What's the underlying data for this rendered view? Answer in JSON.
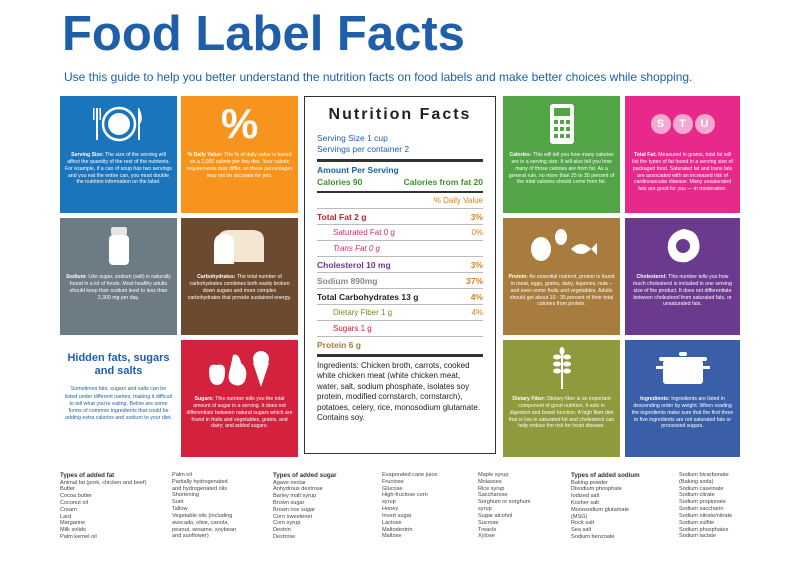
{
  "header": {
    "title": "Food Label Facts",
    "subtitle": "Use this guide to help you better understand the nutrition facts on food labels and make better choices while shopping."
  },
  "tiles": {
    "serving": {
      "head": "Serving Size:",
      "body": "The size of the serving will affect the quantity of the rest of the nutrients. For example, if a can of soup has two servings and you eat the entire can, you must double the nutrition information on the label."
    },
    "daily": {
      "icon": "%",
      "head": "% Daily Value:",
      "body": "The % of daily value is based on a 2,000 calorie per day diet. Your caloric requirements may differ, as these percentages may not be accurate for you."
    },
    "sodium": {
      "head": "Sodium:",
      "body": "Like sugar, sodium (salt) is naturally found in a lot of foods. Most healthy adults should keep their sodium level to less than 2,300 mg per day."
    },
    "carbs": {
      "head": "Carbohydrates:",
      "body": "The total number of carbohydrates combines both easily broken down sugars and more complex carbohydrates that provide sustained energy."
    },
    "sugars": {
      "head": "Sugars:",
      "body": "This number tells you the total amount of sugar in a serving. It does not differentiate between natural sugars which are found in fruits and vegetables, grains, and dairy; and added sugars."
    },
    "calories": {
      "head": "Calories:",
      "body": "This will tell you how many calories are in a serving size. It will also tell you how many of those calories are from fat. As a general rule, no more than 25 to 35 percent of the total calories should come from fat."
    },
    "totalfat": {
      "icon_letters": [
        "S",
        "T",
        "U"
      ],
      "head": "Total Fat:",
      "body": "Measured in grams, total fat will list the types of fat found in a serving size of packaged food. Saturated fat and trans fats are associated with an increased risk of cardiovascular disease. Many unsaturated fats are good for you — in moderation."
    },
    "protein": {
      "head": "Protein:",
      "body": "An essential nutrient, protein is found in meat, eggs, grains, dairy, legumes, nuts – and even some fruits and vegetables. Adults should get about 10 - 35 percent of their total calories from protein."
    },
    "cholesterol": {
      "head": "Cholesterol:",
      "body": "This number tells you how much cholesterol is included in one serving size of the product. It does not differentiate between cholesterol from saturated fats, or unsaturated fats."
    },
    "fiber": {
      "head": "Dietary Fiber:",
      "body": "Dietary fiber is an important component of good nutrition. It aids in digestion and bowel function. A high fiber diet that is low in saturated fat and cholesterol can help reduce the risk for heart disease."
    },
    "ingredients": {
      "head": "Ingredients:",
      "body": "Ingredients are listed in descending order by weight. When reading the ingredients make sure that the first three to five ingredients are not saturated fats or processed sugars."
    }
  },
  "hidden": {
    "title": "Hidden fats, sugars and salts",
    "body": "Sometimes fats, sugars and salts can be listed under different names, making it difficult to tell what you're eating. Below are some forms of common ingredients that could be adding extra calories and sodium to your diet."
  },
  "label": {
    "title": "Nutrition Facts",
    "serving_size": "Serving Size 1 cup",
    "servings_per": "Servings per container 2",
    "amount": "Amount Per Serving",
    "calories": "Calories 90",
    "calories_fat": "Calories from fat 20",
    "dv_header": "% Daily Value",
    "total_fat": "Total Fat 2 g",
    "total_fat_dv": "3%",
    "sat_fat": "Saturated Fat 0 g",
    "sat_fat_dv": "0%",
    "trans_fat": "Trans Fat 0 g",
    "cholesterol": "Cholesterol 10 mg",
    "cholesterol_dv": "3%",
    "sodium": "Sodium 890mg",
    "sodium_dv": "37%",
    "carbs": "Total Carbohydrates 13 g",
    "carbs_dv": "4%",
    "fiber": "Dietary Fiber 1 g",
    "fiber_dv": "4%",
    "sugars": "Sugars 1 g",
    "protein": "Protein 6 g",
    "ingredients": "Ingredients: Chicken broth, carrots, cooked white chicken meat (white chicken meat, water, salt, sodium phosphate, isolates soy protein, modified cornstarch, cornstarch), potatoes, celery, rice, monosodium glutamate. Contains soy."
  },
  "lists": {
    "fat": {
      "head": "Types of added fat",
      "items": [
        "Animal fat (pork, chicken and beef)",
        "Butter",
        "Cocoa butter",
        "Coconut oil",
        "Cream",
        "Lard",
        "Margarine",
        "Milk solids",
        "Palm kernel oil"
      ]
    },
    "fat2": {
      "items": [
        "Palm oil",
        "Partially hydrogenated",
        "and hydrogenated oils",
        "Shortening",
        "Suet",
        "Tallow",
        "Vegetable oils (including",
        "avocado, olive, canola,",
        "peanut, sesame, soybean",
        "and sunflower)"
      ]
    },
    "sugar": {
      "head": "Types of added sugar",
      "items": [
        "Agave nectar",
        "Anhydrous dextrose",
        "Barley malt syrup",
        "Brown sugar",
        "Brown rice sugar",
        "Corn sweetener",
        "Corn syrup",
        "Dextrin",
        "Dextrose"
      ]
    },
    "sugar2": {
      "items": [
        "Evaporated cane juice",
        "Fructose",
        "Glucose",
        "High-fructose corn",
        "syrup",
        "Honey",
        "Invert sugar",
        "Lactose",
        "Maltodextrin",
        "Maltose"
      ]
    },
    "sugar3": {
      "items": [
        "Maple syrup",
        "Molasses",
        "Rice syrup",
        "Saccharose",
        "Sorghum or sorghum",
        "syrup",
        "Sugar alcohol",
        "Sucrose",
        "Treacle",
        "Xylose"
      ]
    },
    "sodium": {
      "head": "Types of added sodium",
      "items": [
        "Baking powder",
        "Disodium phosphate",
        "Iodized salt",
        "Kosher salt",
        "Monosodium glutamate",
        "(MSG)",
        "Rock salt",
        "Sea salt",
        "Sodium benzoate"
      ]
    },
    "sodium2": {
      "items": [
        "Sodium bicarbonate",
        "(Baking soda)",
        "Sodium caseinate",
        "Sodium citrate",
        "Sodium propionate",
        "Sodium saccharin",
        "Sodium nitrate/nitrate",
        "Sodium sulfite",
        "Sodium phosphates",
        "Sodium lactate"
      ]
    }
  }
}
